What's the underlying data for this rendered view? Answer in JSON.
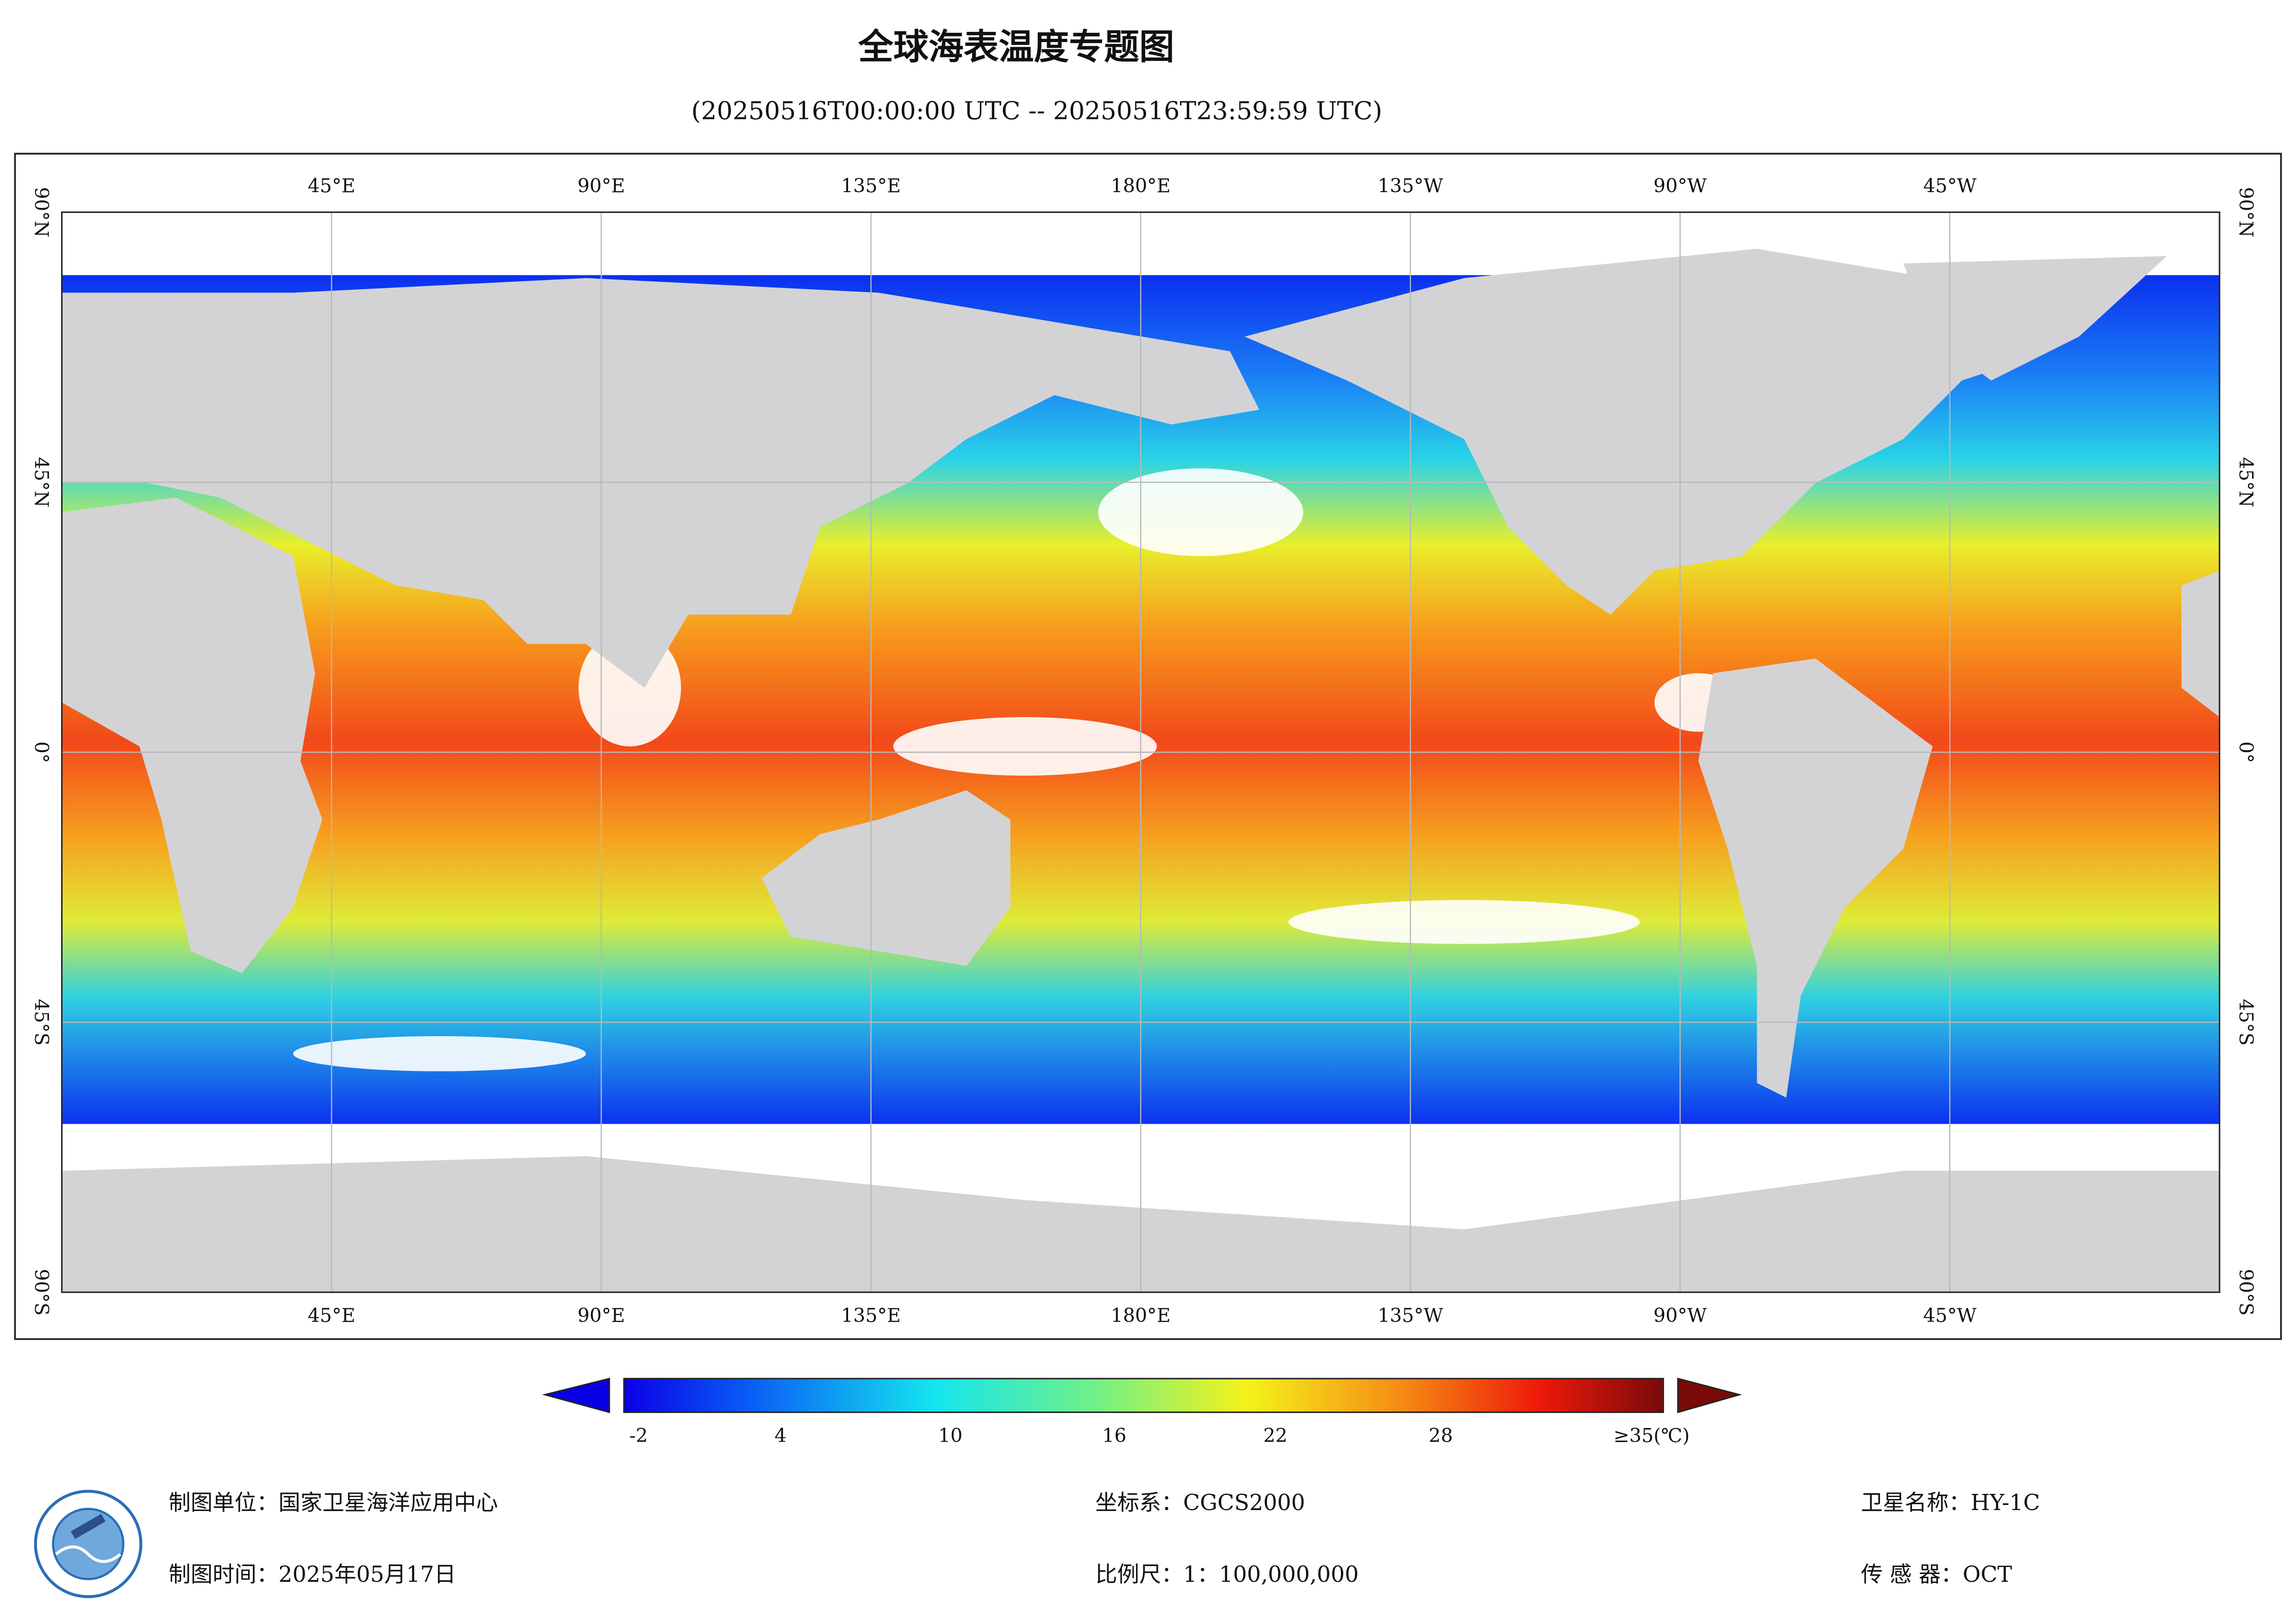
{
  "header": {
    "title": "全球海表温度专题图",
    "subtitle": "(20250516T00:00:00 UTC -- 20250516T23:59:59 UTC)"
  },
  "map": {
    "lon_labels": [
      "45°E",
      "90°E",
      "135°E",
      "180°E",
      "135°W",
      "90°W",
      "45°W"
    ],
    "lat_labels": [
      "90°N",
      "45°N",
      "0°",
      "45°S",
      "90°S"
    ]
  },
  "colorbar": {
    "labels": [
      "-2",
      "4",
      "10",
      "16",
      "22",
      "28",
      "≥35(℃)"
    ]
  },
  "footer": {
    "fields": [
      {
        "label": "制图单位：",
        "value": "国家卫星海洋应用中心"
      },
      {
        "label": "制图时间：",
        "value": "2025年05月17日"
      },
      {
        "label": "坐标系：",
        "value": "CGCS2000"
      },
      {
        "label": "比例尺：",
        "value": "1：100,000,000"
      },
      {
        "label": "卫星名称：",
        "value": "HY-1C"
      },
      {
        "label": "传 感 器：",
        "value": "OCT"
      }
    ]
  }
}
